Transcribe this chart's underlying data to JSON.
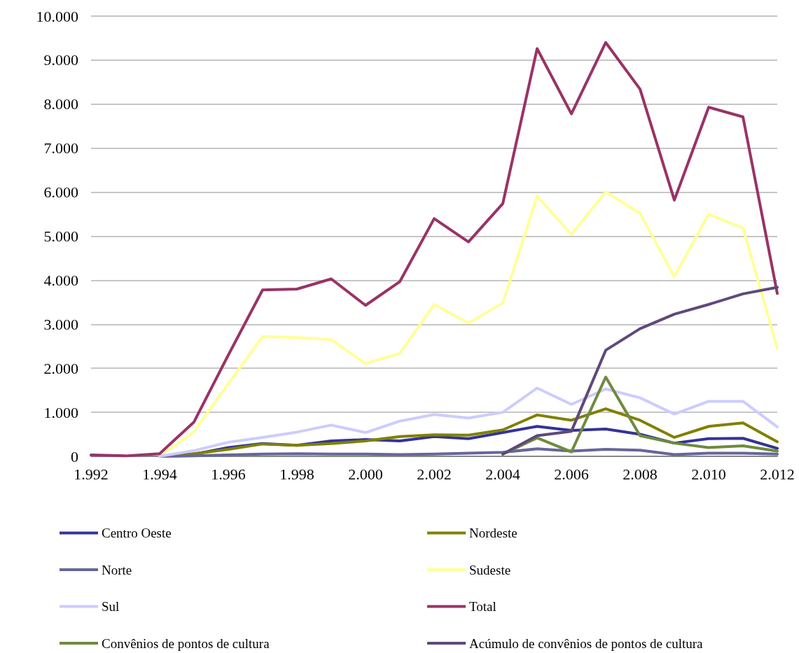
{
  "chart_data": {
    "type": "line",
    "x": [
      1992,
      1993,
      1994,
      1995,
      1996,
      1997,
      1998,
      1999,
      2000,
      2001,
      2002,
      2003,
      2004,
      2005,
      2006,
      2007,
      2008,
      2009,
      2010,
      2011,
      2012
    ],
    "series": [
      {
        "name": "Centro Oeste",
        "color": "#333399",
        "values": [
          null,
          null,
          0,
          50,
          200,
          290,
          250,
          350,
          380,
          350,
          450,
          400,
          540,
          680,
          590,
          620,
          500,
          300,
          400,
          410,
          180
        ]
      },
      {
        "name": "Nordeste",
        "color": "#808000",
        "values": [
          null,
          null,
          0,
          60,
          160,
          280,
          250,
          290,
          350,
          450,
          490,
          480,
          600,
          940,
          820,
          1080,
          820,
          430,
          680,
          760,
          330
        ]
      },
      {
        "name": "Norte",
        "color": "#666699",
        "values": [
          null,
          null,
          0,
          10,
          30,
          50,
          60,
          50,
          50,
          40,
          50,
          70,
          90,
          170,
          120,
          160,
          140,
          40,
          70,
          70,
          50
        ]
      },
      {
        "name": "Sudeste",
        "color": "#ffff99",
        "values": [
          null,
          null,
          0,
          560,
          1650,
          2720,
          2700,
          2650,
          2110,
          2340,
          3450,
          3030,
          3480,
          5910,
          5040,
          6010,
          5520,
          4080,
          5500,
          5190,
          2450
        ]
      },
      {
        "name": "Sul",
        "color": "#ccccff",
        "values": [
          null,
          null,
          0,
          130,
          320,
          430,
          550,
          710,
          540,
          800,
          950,
          870,
          1000,
          1550,
          1180,
          1530,
          1330,
          960,
          1250,
          1250,
          670
        ]
      },
      {
        "name": "Total",
        "color": "#993366",
        "values": [
          30,
          10,
          60,
          780,
          2300,
          3780,
          3800,
          4030,
          3430,
          3970,
          5400,
          4870,
          5740,
          9260,
          7780,
          9400,
          8340,
          5820,
          7930,
          7710,
          3700
        ]
      },
      {
        "name": "Convênios de pontos de cultura",
        "color": "#6e8b3d",
        "values": [
          null,
          null,
          null,
          null,
          null,
          null,
          null,
          null,
          null,
          null,
          null,
          null,
          50,
          420,
          100,
          1800,
          470,
          300,
          200,
          240,
          120
        ]
      },
      {
        "name": "Acúmulo de convênios de pontos de cultura",
        "color": "#5f497a",
        "values": [
          null,
          null,
          null,
          null,
          null,
          null,
          null,
          null,
          null,
          null,
          null,
          null,
          50,
          470,
          570,
          2410,
          2900,
          3230,
          3450,
          3690,
          3840
        ]
      }
    ],
    "xlim": [
      1992,
      2012
    ],
    "xticks": [
      {
        "value": 1992,
        "label": "1.992"
      },
      {
        "value": 1994,
        "label": "1.994"
      },
      {
        "value": 1996,
        "label": "1.996"
      },
      {
        "value": 1998,
        "label": "1.998"
      },
      {
        "value": 2000,
        "label": "2.000"
      },
      {
        "value": 2002,
        "label": "2.002"
      },
      {
        "value": 2004,
        "label": "2.004"
      },
      {
        "value": 2006,
        "label": "2.006"
      },
      {
        "value": 2008,
        "label": "2.008"
      },
      {
        "value": 2010,
        "label": "2.010"
      },
      {
        "value": 2012,
        "label": "2.012"
      }
    ],
    "ylim": [
      0,
      10000
    ],
    "yticks": [
      0,
      {
        "value": 1000,
        "label": "1.000"
      },
      {
        "value": 2000,
        "label": "2.000"
      },
      {
        "value": 3000,
        "label": "3.000"
      },
      {
        "value": 4000,
        "label": "4.000"
      },
      {
        "value": 5000,
        "label": "5.000"
      },
      {
        "value": 6000,
        "label": "6.000"
      },
      {
        "value": 7000,
        "label": "7.000"
      },
      {
        "value": 8000,
        "label": "8.000"
      },
      {
        "value": 9000,
        "label": "9.000"
      },
      {
        "value": 10000,
        "label": "10.000"
      }
    ],
    "grid": "y",
    "legend": "bottom",
    "marker": "none",
    "line_style": "solid"
  }
}
